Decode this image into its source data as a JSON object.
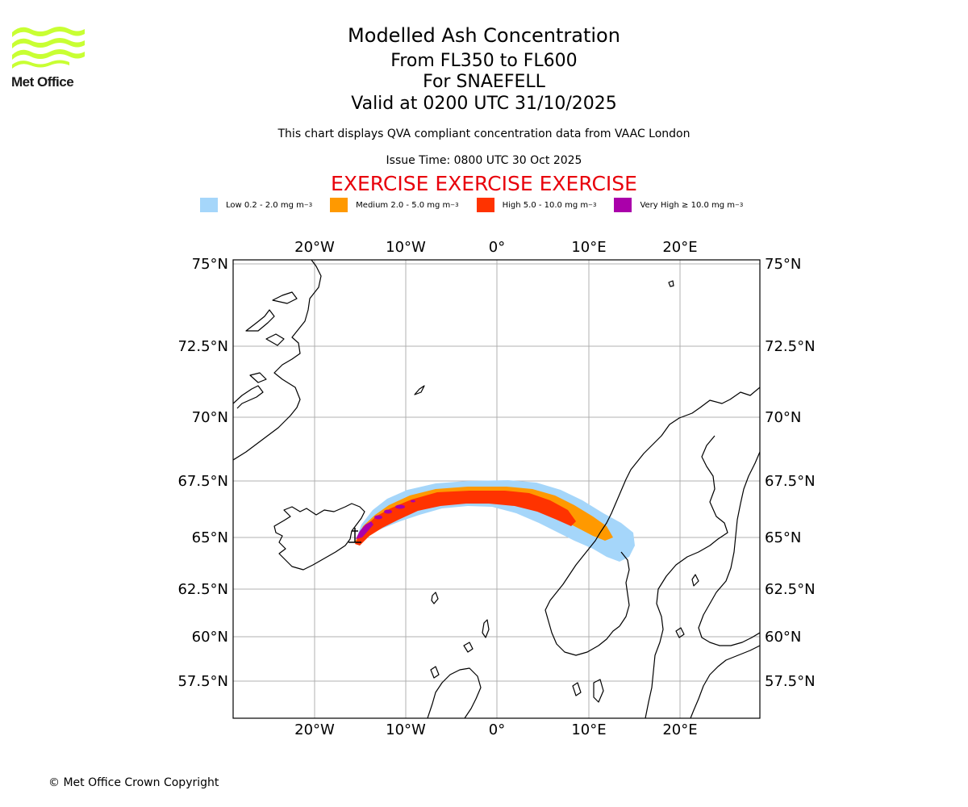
{
  "branding": {
    "logo_icon": "met-office-wave-icon",
    "logo_text": "Met Office",
    "logo_color": "#c8ff33"
  },
  "header": {
    "title": "Modelled Ash Concentration",
    "level_range": "From FL350 to FL600",
    "volcano": "For SNAEFELL",
    "valid_time": "Valid at 0200 UTC 31/10/2025",
    "description": "This chart displays QVA compliant concentration data from VAAC London",
    "issue_time": "Issue Time: 0800 UTC 30 Oct 2025",
    "exercise_banner": "EXERCISE EXERCISE EXERCISE",
    "exercise_color": "#e8000b"
  },
  "legend": [
    {
      "label": "Low 0.2 - 2.0 mg m",
      "unit_sup": "−3",
      "color": "#a5d6fa"
    },
    {
      "label": "Medium 2.0 - 5.0 mg m",
      "unit_sup": "−3",
      "color": "#ff9900"
    },
    {
      "label": "High 5.0 - 10.0 mg m",
      "unit_sup": "−3",
      "color": "#ff3300"
    },
    {
      "label": "Very High  ≥  10.0 mg m",
      "unit_sup": "−3",
      "color": "#aa00aa"
    }
  ],
  "map": {
    "lon_labels": [
      "20°W",
      "10°W",
      "0°",
      "10°E",
      "20°E"
    ],
    "lat_labels": [
      "75°N",
      "72.5°N",
      "70°N",
      "67.5°N",
      "65°N",
      "62.5°N",
      "60°N",
      "57.5°N"
    ],
    "gridlines": true,
    "grid_color": "#b0b0b0",
    "coastline_color": "#000000"
  },
  "footer": {
    "copyright": "© Met Office Crown Copyright"
  }
}
